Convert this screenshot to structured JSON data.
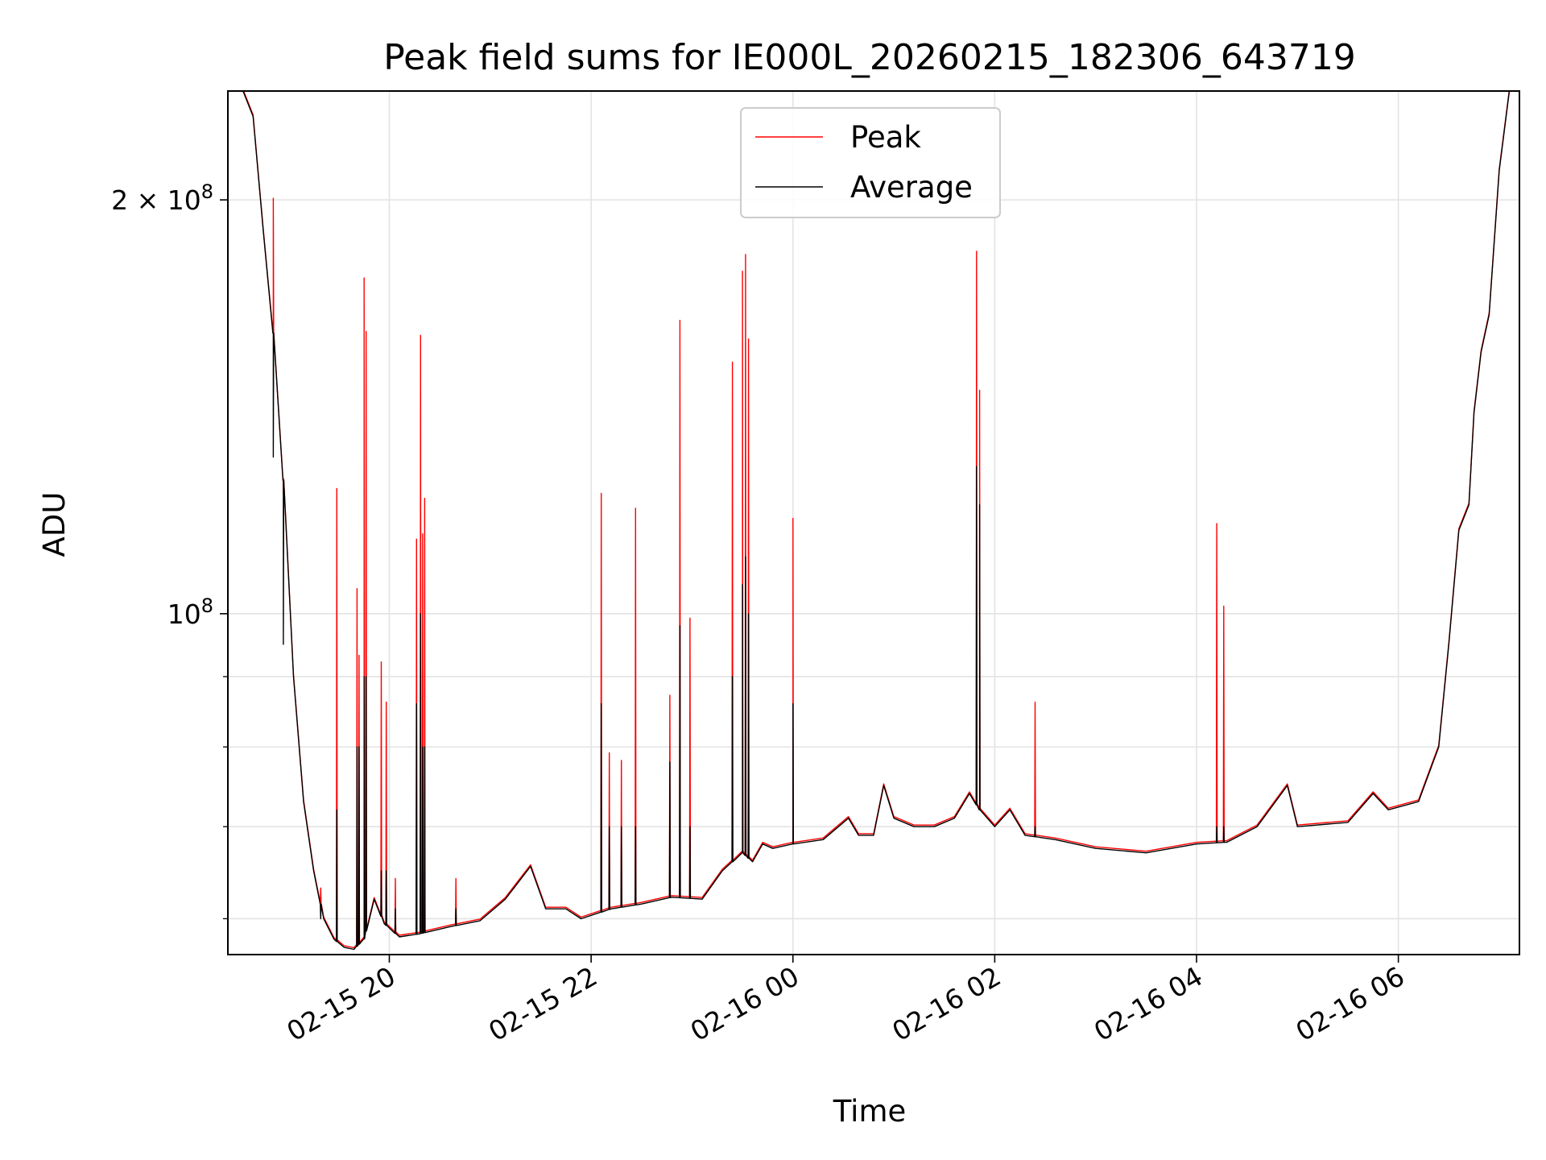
{
  "chart_data": {
    "type": "line",
    "title": "Peak field sums for IE000L_20260215_182306_643719",
    "xlabel": "Time",
    "ylabel": "ADU",
    "y_scale": "log",
    "ylim": [
      56500000,
      240000000
    ],
    "xlim": [
      -1.6,
      11.2
    ],
    "x_unit": "hours since 02-15 20:00",
    "grid": true,
    "legend_position": "top-center",
    "x_ticks": [
      {
        "value": 0,
        "label": "02-15 20"
      },
      {
        "value": 2,
        "label": "02-15 22"
      },
      {
        "value": 4,
        "label": "02-16 00"
      },
      {
        "value": 6,
        "label": "02-16 02"
      },
      {
        "value": 8,
        "label": "02-16 04"
      },
      {
        "value": 10,
        "label": "02-16 06"
      }
    ],
    "y_major_ticks": [
      {
        "value": 100000000,
        "base": "10",
        "exp": "8",
        "coef": ""
      },
      {
        "value": 200000000,
        "base": "10",
        "exp": "8",
        "coef": "2 × "
      }
    ],
    "y_minor_ticks": [
      60000000,
      70000000,
      80000000,
      90000000
    ],
    "series": [
      {
        "name": "Average",
        "color": "#000000"
      },
      {
        "name": "Peak",
        "color": "#ff0000"
      }
    ],
    "baseline_points": [
      [
        -1.6,
        240000000.0
      ],
      [
        -1.45,
        240000000.0
      ],
      [
        -1.35,
        230000000.0
      ],
      [
        -1.25,
        190000000.0
      ],
      [
        -1.15,
        160000000.0
      ],
      [
        -1.05,
        125000000.0
      ],
      [
        -0.95,
        90000000.0
      ],
      [
        -0.85,
        73000000.0
      ],
      [
        -0.75,
        65000000.0
      ],
      [
        -0.65,
        60000000.0
      ],
      [
        -0.55,
        58000000.0
      ],
      [
        -0.45,
        57200000.0
      ],
      [
        -0.35,
        57000000.0
      ],
      [
        -0.25,
        58000000.0
      ],
      [
        -0.15,
        62000000.0
      ],
      [
        -0.05,
        59500000.0
      ],
      [
        0.1,
        58200000.0
      ],
      [
        0.3,
        58500000.0
      ],
      [
        0.6,
        59200000.0
      ],
      [
        0.9,
        59800000.0
      ],
      [
        1.15,
        62000000.0
      ],
      [
        1.4,
        65500000.0
      ],
      [
        1.55,
        61000000.0
      ],
      [
        1.75,
        61000000.0
      ],
      [
        1.9,
        60000000.0
      ],
      [
        2.2,
        61000000.0
      ],
      [
        2.5,
        61500000.0
      ],
      [
        2.8,
        62200000.0
      ],
      [
        3.1,
        62000000.0
      ],
      [
        3.3,
        65000000.0
      ],
      [
        3.5,
        67000000.0
      ],
      [
        3.6,
        66000000.0
      ],
      [
        3.7,
        68000000.0
      ],
      [
        3.8,
        67500000.0
      ],
      [
        4.0,
        68000000.0
      ],
      [
        4.3,
        68500000.0
      ],
      [
        4.55,
        71000000.0
      ],
      [
        4.65,
        69000000.0
      ],
      [
        4.8,
        69000000.0
      ],
      [
        4.9,
        75000000.0
      ],
      [
        5.0,
        71000000.0
      ],
      [
        5.2,
        70000000.0
      ],
      [
        5.4,
        70000000.0
      ],
      [
        5.6,
        71000000.0
      ],
      [
        5.75,
        74000000.0
      ],
      [
        5.85,
        72000000.0
      ],
      [
        6.0,
        70000000.0
      ],
      [
        6.15,
        72000000.0
      ],
      [
        6.3,
        69000000.0
      ],
      [
        6.6,
        68500000.0
      ],
      [
        7.0,
        67500000.0
      ],
      [
        7.5,
        67000000.0
      ],
      [
        8.0,
        68000000.0
      ],
      [
        8.3,
        68200000.0
      ],
      [
        8.6,
        70000000.0
      ],
      [
        8.9,
        75000000.0
      ],
      [
        9.0,
        70000000.0
      ],
      [
        9.5,
        70500000.0
      ],
      [
        9.75,
        74000000.0
      ],
      [
        9.9,
        72000000.0
      ],
      [
        10.2,
        73000000.0
      ],
      [
        10.4,
        80000000.0
      ],
      [
        10.5,
        95000000.0
      ],
      [
        10.6,
        115000000.0
      ],
      [
        10.7,
        120000000.0
      ],
      [
        10.75,
        140000000.0
      ],
      [
        10.82,
        155000000.0
      ],
      [
        10.9,
        165000000.0
      ],
      [
        11.0,
        210000000.0
      ],
      [
        11.1,
        240000000.0
      ],
      [
        11.2,
        240000000.0
      ]
    ],
    "spikes": [
      {
        "x": -1.15,
        "peak": 200000000.0,
        "avg": 130000000.0
      },
      {
        "x": -1.05,
        "peak": 122000000.0,
        "avg": 95000000.0
      },
      {
        "x": -0.68,
        "peak": 63000000.0,
        "avg": 60000000.0
      },
      {
        "x": -0.52,
        "peak": 123000000.0,
        "avg": 72000000.0
      },
      {
        "x": -0.32,
        "peak": 104000000.0,
        "avg": 80000000.0
      },
      {
        "x": -0.3,
        "peak": 93000000.0,
        "avg": 80000000.0
      },
      {
        "x": -0.25,
        "peak": 175000000.0,
        "avg": 90000000.0
      },
      {
        "x": -0.23,
        "peak": 160000000.0,
        "avg": 90000000.0
      },
      {
        "x": -0.08,
        "peak": 92000000.0,
        "avg": 65000000.0
      },
      {
        "x": -0.03,
        "peak": 86000000.0,
        "avg": 65000000.0
      },
      {
        "x": 0.06,
        "peak": 64000000.0,
        "avg": 61000000.0
      },
      {
        "x": 0.27,
        "peak": 113000000.0,
        "avg": 86000000.0
      },
      {
        "x": 0.31,
        "peak": 159000000.0,
        "avg": 100000000.0
      },
      {
        "x": 0.33,
        "peak": 114000000.0,
        "avg": 80000000.0
      },
      {
        "x": 0.35,
        "peak": 121000000.0,
        "avg": 80000000.0
      },
      {
        "x": 0.66,
        "peak": 64000000.0,
        "avg": 61000000.0
      },
      {
        "x": 2.1,
        "peak": 122000000.0,
        "avg": 86000000.0
      },
      {
        "x": 2.18,
        "peak": 79000000.0,
        "avg": 70000000.0
      },
      {
        "x": 2.3,
        "peak": 78000000.0,
        "avg": 70000000.0
      },
      {
        "x": 2.44,
        "peak": 119000000.0,
        "avg": 70000000.0
      },
      {
        "x": 2.78,
        "peak": 87000000.0,
        "avg": 78000000.0
      },
      {
        "x": 2.88,
        "peak": 163000000.0,
        "avg": 98000000.0
      },
      {
        "x": 2.98,
        "peak": 99000000.0,
        "avg": 70000000.0
      },
      {
        "x": 3.4,
        "peak": 152000000.0,
        "avg": 90000000.0
      },
      {
        "x": 3.5,
        "peak": 177000000.0,
        "avg": 105000000.0
      },
      {
        "x": 3.53,
        "peak": 182000000.0,
        "avg": 110000000.0
      },
      {
        "x": 3.56,
        "peak": 158000000.0,
        "avg": 100000000.0
      },
      {
        "x": 4.0,
        "peak": 117000000.0,
        "avg": 86000000.0
      },
      {
        "x": 5.82,
        "peak": 183000000.0,
        "avg": 128000000.0
      },
      {
        "x": 5.85,
        "peak": 145000000.0,
        "avg": 120000000.0
      },
      {
        "x": 6.4,
        "peak": 86000000.0,
        "avg": 70000000.0
      },
      {
        "x": 8.2,
        "peak": 116000000.0,
        "avg": 70000000.0
      },
      {
        "x": 8.27,
        "peak": 101000000.0,
        "avg": 70000000.0
      }
    ]
  }
}
